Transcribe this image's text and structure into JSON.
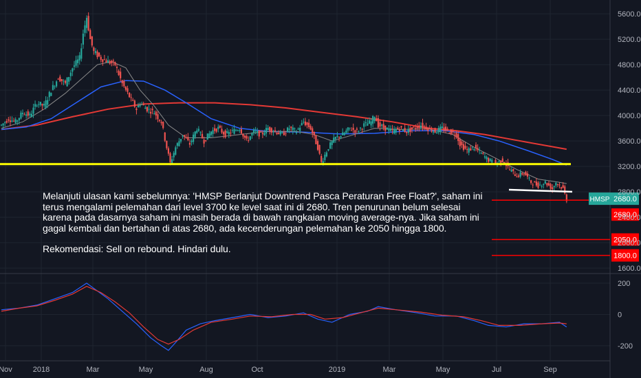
{
  "chart_data": [
    {
      "type": "candlestick",
      "ticker": "HMSP",
      "y_ticks": [
        "5600.0",
        "5200.0",
        "4800.0",
        "4400.0",
        "4000.0",
        "3600.0",
        "3200.0",
        "2800.0",
        "2400.0",
        "2000.0",
        "1600.0"
      ],
      "ylim": [
        1550,
        5800
      ],
      "x_ticks": [
        "Nov",
        "2018",
        "Mar",
        "May",
        "Aug",
        "Oct",
        "2019",
        "Mar",
        "May",
        "Jul",
        "Sep"
      ],
      "prices": [
        [
          0,
          3850
        ],
        [
          4,
          3950
        ],
        [
          8,
          3900
        ],
        [
          12,
          4050
        ],
        [
          16,
          4000
        ],
        [
          20,
          4200
        ],
        [
          24,
          4150
        ],
        [
          28,
          4400
        ],
        [
          32,
          4600
        ],
        [
          36,
          4500
        ],
        [
          40,
          4750
        ],
        [
          44,
          4900
        ],
        [
          46,
          5300
        ],
        [
          48,
          5550
        ],
        [
          50,
          5200
        ],
        [
          52,
          5000
        ],
        [
          56,
          4900
        ],
        [
          60,
          4850
        ],
        [
          64,
          4800
        ],
        [
          68,
          4500
        ],
        [
          72,
          4300
        ],
        [
          76,
          4100
        ],
        [
          78,
          4200
        ],
        [
          82,
          4100
        ],
        [
          86,
          4050
        ],
        [
          90,
          3900
        ],
        [
          93,
          3500
        ],
        [
          95,
          3250
        ],
        [
          98,
          3500
        ],
        [
          102,
          3700
        ],
        [
          106,
          3550
        ],
        [
          110,
          3800
        ],
        [
          114,
          3600
        ],
        [
          118,
          3750
        ],
        [
          122,
          3800
        ],
        [
          126,
          3700
        ],
        [
          130,
          3750
        ],
        [
          134,
          3800
        ],
        [
          138,
          3600
        ],
        [
          142,
          3750
        ],
        [
          146,
          3700
        ],
        [
          150,
          3800
        ],
        [
          154,
          3750
        ],
        [
          158,
          3700
        ],
        [
          162,
          3800
        ],
        [
          166,
          3750
        ],
        [
          170,
          3900
        ],
        [
          174,
          3800
        ],
        [
          178,
          3500
        ],
        [
          180,
          3260
        ],
        [
          184,
          3500
        ],
        [
          188,
          3650
        ],
        [
          192,
          3700
        ],
        [
          196,
          3800
        ],
        [
          200,
          3750
        ],
        [
          204,
          3850
        ],
        [
          208,
          3900
        ],
        [
          210,
          4000
        ],
        [
          212,
          3850
        ],
        [
          216,
          3800
        ],
        [
          220,
          3750
        ],
        [
          224,
          3800
        ],
        [
          228,
          3750
        ],
        [
          232,
          3800
        ],
        [
          236,
          3850
        ],
        [
          240,
          3800
        ],
        [
          244,
          3750
        ],
        [
          248,
          3800
        ],
        [
          252,
          3750
        ],
        [
          256,
          3700
        ],
        [
          258,
          3550
        ],
        [
          262,
          3450
        ],
        [
          266,
          3500
        ],
        [
          270,
          3400
        ],
        [
          274,
          3300
        ],
        [
          278,
          3250
        ],
        [
          282,
          3300
        ],
        [
          286,
          3150
        ],
        [
          290,
          3050
        ],
        [
          294,
          3100
        ],
        [
          298,
          2950
        ],
        [
          302,
          2900
        ],
        [
          306,
          2950
        ],
        [
          310,
          2850
        ],
        [
          312,
          2950
        ],
        [
          316,
          2850
        ],
        [
          318,
          2680
        ]
      ],
      "ma_short": [
        [
          0,
          3800
        ],
        [
          12,
          3900
        ],
        [
          24,
          4100
        ],
        [
          36,
          4350
        ],
        [
          46,
          4600
        ],
        [
          54,
          4800
        ],
        [
          62,
          4850
        ],
        [
          70,
          4750
        ],
        [
          78,
          4400
        ],
        [
          86,
          4150
        ],
        [
          94,
          3850
        ],
        [
          104,
          3650
        ],
        [
          118,
          3650
        ],
        [
          134,
          3700
        ],
        [
          150,
          3750
        ],
        [
          166,
          3750
        ],
        [
          176,
          3700
        ],
        [
          186,
          3600
        ],
        [
          196,
          3680
        ],
        [
          210,
          3800
        ],
        [
          224,
          3780
        ],
        [
          240,
          3790
        ],
        [
          254,
          3700
        ],
        [
          266,
          3500
        ],
        [
          278,
          3330
        ],
        [
          290,
          3150
        ],
        [
          302,
          3000
        ],
        [
          314,
          2950
        ],
        [
          318,
          2930
        ]
      ],
      "ma_mid": [
        [
          0,
          3780
        ],
        [
          14,
          3820
        ],
        [
          28,
          3950
        ],
        [
          42,
          4200
        ],
        [
          56,
          4450
        ],
        [
          70,
          4550
        ],
        [
          80,
          4540
        ],
        [
          92,
          4400
        ],
        [
          104,
          4200
        ],
        [
          118,
          3950
        ],
        [
          134,
          3800
        ],
        [
          150,
          3750
        ],
        [
          170,
          3740
        ],
        [
          190,
          3710
        ],
        [
          210,
          3720
        ],
        [
          230,
          3760
        ],
        [
          250,
          3760
        ],
        [
          266,
          3700
        ],
        [
          280,
          3600
        ],
        [
          296,
          3450
        ],
        [
          310,
          3310
        ],
        [
          318,
          3220
        ]
      ],
      "ma_long": [
        [
          0,
          3780
        ],
        [
          20,
          3850
        ],
        [
          40,
          3980
        ],
        [
          60,
          4100
        ],
        [
          80,
          4180
        ],
        [
          100,
          4200
        ],
        [
          120,
          4200
        ],
        [
          140,
          4170
        ],
        [
          160,
          4120
        ],
        [
          180,
          4050
        ],
        [
          200,
          3980
        ],
        [
          220,
          3900
        ],
        [
          240,
          3800
        ],
        [
          256,
          3760
        ],
        [
          272,
          3700
        ],
        [
          290,
          3610
        ],
        [
          306,
          3530
        ],
        [
          318,
          3470
        ]
      ],
      "current_price_label": "2680.0",
      "support_lines": [
        3220,
        2800
      ],
      "levels": [
        {
          "price": 2680,
          "label": "2680.0"
        },
        {
          "price": 2050,
          "label": "2050.0"
        },
        {
          "price": 1800,
          "label": "1800.0"
        }
      ],
      "colors": {
        "up": "#26a69a",
        "down": "#ef5350",
        "ma_short": "#8a8a8a",
        "ma_mid": "#2962ff",
        "ma_long": "#e53935",
        "support": "#ffff00",
        "level": "#ff0000"
      }
    },
    {
      "type": "line",
      "y_ticks": [
        "200",
        "0",
        "-200"
      ],
      "ylim": [
        -250,
        250
      ],
      "series": [
        {
          "values": [
            [
              0,
              30
            ],
            [
              10,
              40
            ],
            [
              20,
              60
            ],
            [
              30,
              100
            ],
            [
              40,
              140
            ],
            [
              48,
              200
            ],
            [
              54,
              150
            ],
            [
              60,
              100
            ],
            [
              68,
              20
            ],
            [
              76,
              -60
            ],
            [
              84,
              -150
            ],
            [
              90,
              -200
            ],
            [
              94,
              -230
            ],
            [
              98,
              -180
            ],
            [
              104,
              -100
            ],
            [
              112,
              -60
            ],
            [
              120,
              -40
            ],
            [
              130,
              -20
            ],
            [
              140,
              0
            ],
            [
              150,
              -20
            ],
            [
              160,
              -10
            ],
            [
              170,
              10
            ],
            [
              178,
              -30
            ],
            [
              186,
              -50
            ],
            [
              196,
              0
            ],
            [
              206,
              20
            ],
            [
              212,
              50
            ],
            [
              222,
              30
            ],
            [
              234,
              10
            ],
            [
              244,
              -10
            ],
            [
              256,
              -10
            ],
            [
              266,
              -40
            ],
            [
              274,
              -70
            ],
            [
              284,
              -80
            ],
            [
              294,
              -60
            ],
            [
              304,
              -60
            ],
            [
              314,
              -50
            ],
            [
              318,
              -80
            ]
          ]
        },
        {
          "values": [
            [
              0,
              20
            ],
            [
              10,
              40
            ],
            [
              20,
              55
            ],
            [
              30,
              90
            ],
            [
              40,
              130
            ],
            [
              48,
              180
            ],
            [
              56,
              140
            ],
            [
              64,
              80
            ],
            [
              72,
              10
            ],
            [
              80,
              -80
            ],
            [
              88,
              -160
            ],
            [
              94,
              -190
            ],
            [
              100,
              -160
            ],
            [
              108,
              -100
            ],
            [
              118,
              -50
            ],
            [
              130,
              -30
            ],
            [
              140,
              -10
            ],
            [
              152,
              -15
            ],
            [
              164,
              0
            ],
            [
              174,
              0
            ],
            [
              182,
              -30
            ],
            [
              192,
              -20
            ],
            [
              202,
              10
            ],
            [
              212,
              40
            ],
            [
              222,
              30
            ],
            [
              236,
              15
            ],
            [
              248,
              -5
            ],
            [
              260,
              -15
            ],
            [
              270,
              -40
            ],
            [
              280,
              -70
            ],
            [
              292,
              -70
            ],
            [
              304,
              -60
            ],
            [
              314,
              -55
            ],
            [
              318,
              -60
            ]
          ]
        }
      ],
      "colors": {
        "series_a": "#2962ff",
        "series_b": "#e53935"
      }
    }
  ],
  "note": {
    "paragraph": "Melanjuti ulasan kami sebelumnya: 'HMSP Berlanjut Downtrend Pasca Peraturan Free Float?', saham ini terus mengalami pelemahan dari level 3700 ke level saat ini di 2680. Tren penurunan belum selesai karena pada dasarnya saham ini masih berada di bawah rangkaian moving average-nya. Jika saham ini gagal kembali dan bertahan di atas 2680, ada kecenderungan pelemahan ke 2050 hingga 1800.",
    "recommendation": "Rekomendasi: Sell on rebound. Hindari dulu."
  }
}
